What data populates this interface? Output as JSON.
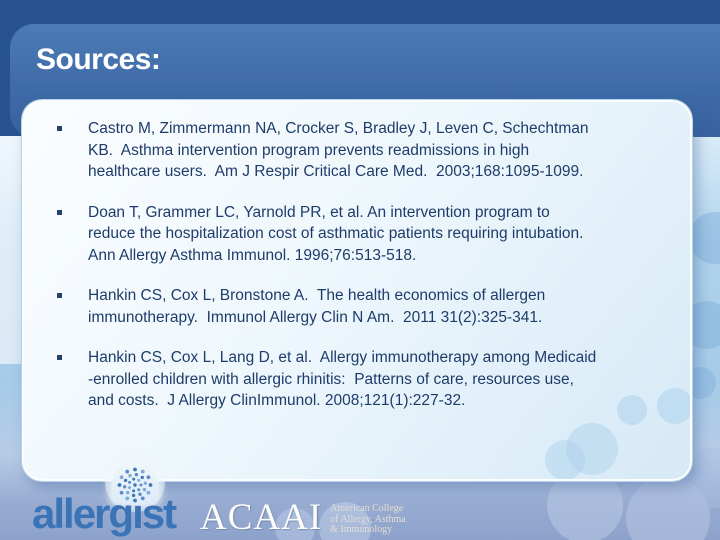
{
  "slide": {
    "title": "Sources:",
    "citations": [
      "Castro M, Zimmermann NA, Crocker S, Bradley J, Leven C, Schechtman\nKB.  Asthma intervention program prevents readmissions in high\nhealthcare users.  Am J Respir Critical Care Med.  2003;168:1095-1099.",
      "Doan T, Grammer LC, Yarnold PR, et al. An intervention program to\nreduce the hospitalization cost of asthmatic patients requiring intubation.\nAnn Allergy Asthma Immunol. 1996;76:513-518.",
      "Hankin CS, Cox L, Bronstone A.  The health economics of allergen\nimmunotherapy.  Immunol Allergy Clin N Am.  2011 31(2):325-341.",
      "Hankin CS, Cox L, Lang D, et al.  Allergy immunotherapy among Medicaid\n-enrolled children with allergic rhinitis:  Patterns of care, resources use,\nand costs.  J Allergy ClinImmunol. 2008;121(1):227-32."
    ]
  },
  "footer": {
    "allergist": {
      "pre": "allerg",
      "i_dotless": "ı",
      "post": "st"
    },
    "acaai": {
      "acronym": "ACAAI",
      "name_lines": [
        "American College",
        "of Allergy, Asthma",
        "& Immunology"
      ]
    }
  },
  "colors": {
    "top_border_blue": "#27538e",
    "header_blue": "#3e6ba7",
    "body_text_navy": "#1e3c6a",
    "card_fill_light": "#eef7fc",
    "logo_blue": "#3b74b6",
    "bottom_band_periwinkle": "#8da2cb"
  }
}
